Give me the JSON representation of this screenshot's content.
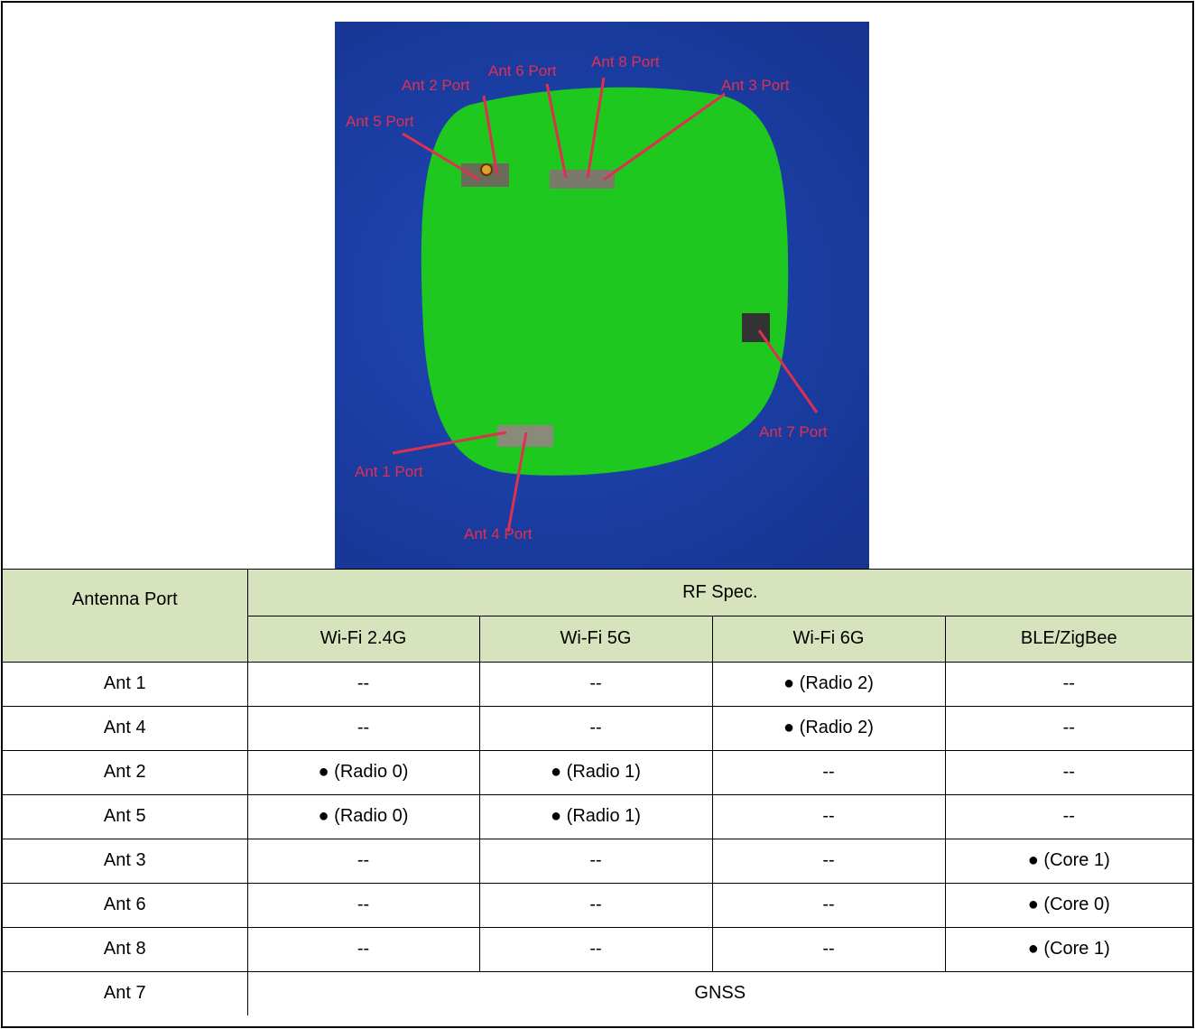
{
  "photo": {
    "labels": {
      "ant1": "Ant 1 Port",
      "ant2": "Ant 2 Port",
      "ant3": "Ant 3 Port",
      "ant4": "Ant 4 Port",
      "ant5": "Ant 5 Port",
      "ant6": "Ant 6 Port",
      "ant7": "Ant 7 Port",
      "ant8": "Ant 8 Port"
    },
    "colors": {
      "background": "#1b3fa6",
      "board": "#1ec81e",
      "label": "#e03050"
    }
  },
  "table": {
    "port_header": "Antenna Port",
    "rf_header": "RF Spec.",
    "bands": [
      "Wi-Fi 2.4G",
      "Wi-Fi 5G",
      "Wi-Fi 6G",
      "BLE/ZigBee"
    ],
    "header_color": "#d6e3bc",
    "rows": [
      {
        "port": "Ant 1",
        "cells": [
          "--",
          "--",
          "● (Radio 2)",
          "--"
        ]
      },
      {
        "port": "Ant 4",
        "cells": [
          "--",
          "--",
          "● (Radio 2)",
          "--"
        ]
      },
      {
        "port": "Ant 2",
        "cells": [
          "● (Radio 0)",
          "● (Radio 1)",
          "--",
          "--"
        ]
      },
      {
        "port": "Ant 5",
        "cells": [
          "● (Radio 0)",
          "● (Radio 1)",
          "--",
          "--"
        ]
      },
      {
        "port": "Ant 3",
        "cells": [
          "--",
          "--",
          "--",
          "● (Core 1)"
        ]
      },
      {
        "port": "Ant 6",
        "cells": [
          "--",
          "--",
          "--",
          "● (Core 0)"
        ]
      },
      {
        "port": "Ant 8",
        "cells": [
          "--",
          "--",
          "--",
          "● (Core 1)"
        ]
      }
    ],
    "last_row": {
      "port": "Ant 7",
      "span_value": "GNSS"
    }
  }
}
